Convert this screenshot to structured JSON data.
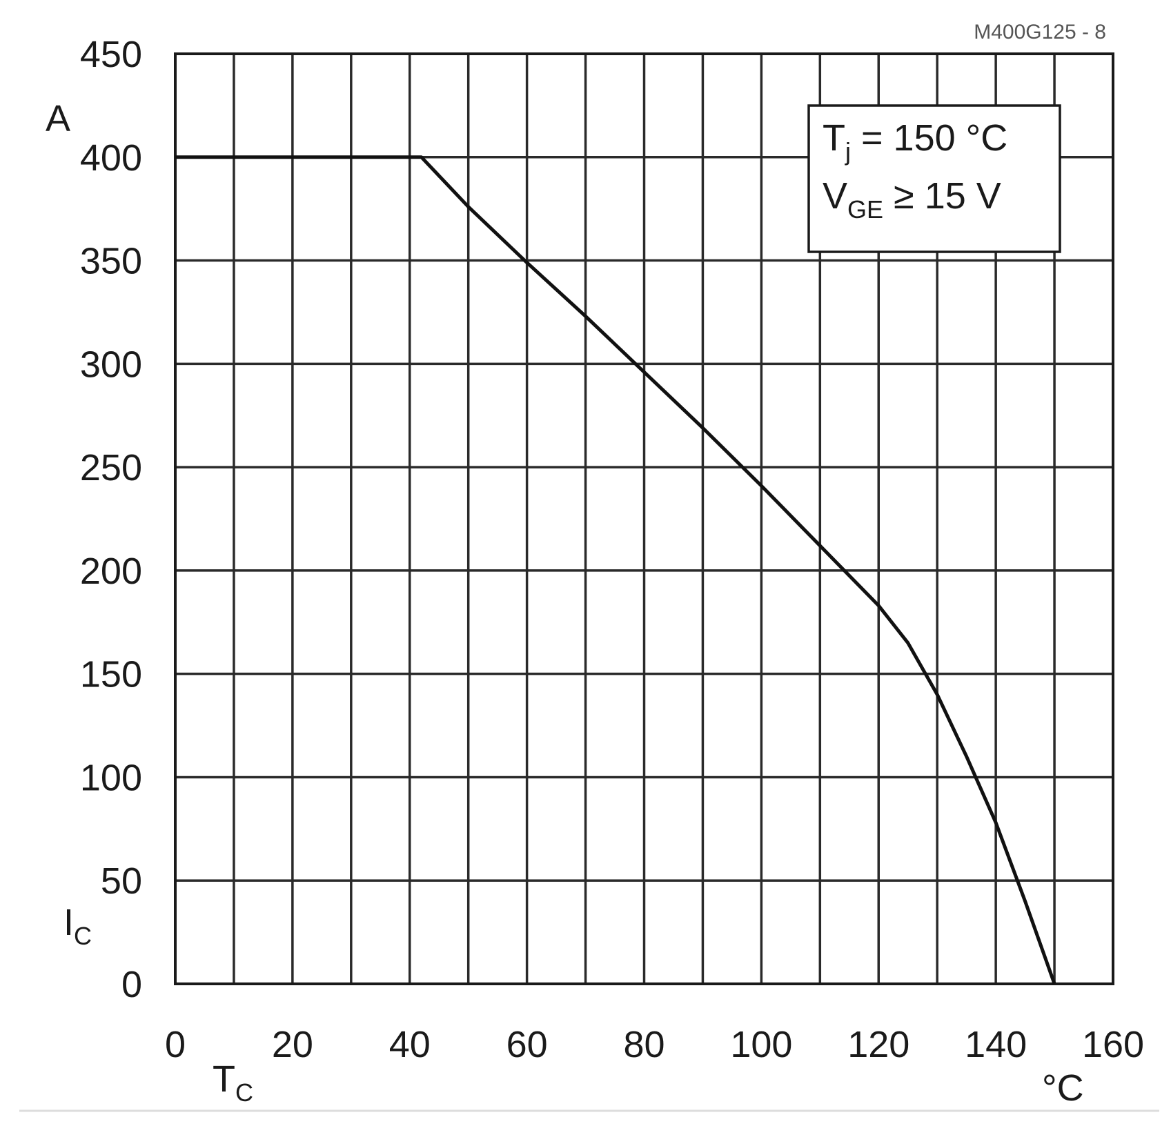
{
  "chart_data": {
    "type": "line",
    "code": "M400G125 - 8",
    "x": {
      "min": 0,
      "max": 160,
      "ticks": [
        0,
        20,
        40,
        60,
        80,
        100,
        120,
        140,
        160
      ],
      "tick_labels": [
        "0",
        "20",
        "40",
        "60",
        "80",
        "100",
        "120",
        "140",
        "160"
      ],
      "minor_step": 10,
      "symbol": "T",
      "symbol_sub": "C",
      "unit": "°C"
    },
    "y": {
      "min": 0,
      "max": 450,
      "ticks": [
        0,
        50,
        100,
        150,
        200,
        250,
        300,
        350,
        400,
        450
      ],
      "tick_labels": [
        "0",
        "50",
        "100",
        "150",
        "200",
        "250",
        "300",
        "350",
        "400",
        "450"
      ],
      "symbol": "I",
      "symbol_sub": "C",
      "unit": "A"
    },
    "grid": true,
    "legend": {
      "placement": "top-right",
      "lines": [
        {
          "main": "T",
          "sub": "j",
          "rest": " = 150 °C"
        },
        {
          "main": "V",
          "sub": "GE",
          "rest": " ≥ 15 V"
        }
      ]
    },
    "series": [
      {
        "x": [
          0,
          42,
          50,
          60,
          70,
          80,
          90,
          100,
          110,
          120,
          125,
          130,
          135,
          140,
          145,
          150
        ],
        "y": [
          400,
          400,
          376,
          349,
          323,
          296,
          269,
          241,
          212,
          183,
          165,
          140,
          110,
          78,
          40,
          0
        ]
      }
    ]
  }
}
